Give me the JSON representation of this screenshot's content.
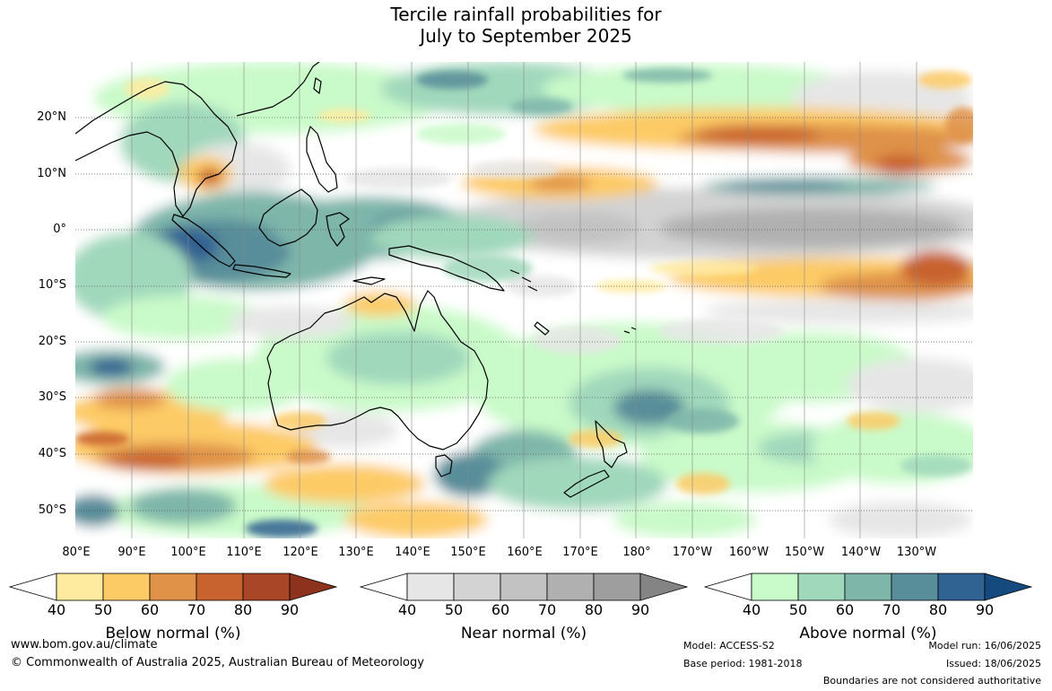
{
  "title_line1": "Tercile rainfall probabilities for",
  "title_line2": "July to September 2025",
  "lat_labels": [
    "20°N",
    "10°N",
    "0°",
    "10°S",
    "20°S",
    "30°S",
    "40°S",
    "50°S"
  ],
  "lon_labels": [
    "80°E",
    "90°E",
    "100°E",
    "110°E",
    "120°E",
    "130°E",
    "140°E",
    "150°E",
    "160°E",
    "170°E",
    "180°",
    "170°W",
    "160°W",
    "150°W",
    "140°W",
    "130°W"
  ],
  "colorbars": [
    {
      "title": "Below normal (%)",
      "ticks": [
        "40",
        "50",
        "60",
        "70",
        "80",
        "90"
      ],
      "colors": [
        "#ffffff",
        "#ffeba0",
        "#fdcb66",
        "#df9248",
        "#c8622f",
        "#a84627",
        "#8c321d"
      ]
    },
    {
      "title": "Near normal (%)",
      "ticks": [
        "40",
        "50",
        "60",
        "70",
        "80",
        "90"
      ],
      "colors": [
        "#ffffff",
        "#e6e6e6",
        "#d3d3d3",
        "#c2c2c2",
        "#b0b0b0",
        "#9e9e9e",
        "#848484"
      ]
    },
    {
      "title": "Above normal (%)",
      "ticks": [
        "40",
        "50",
        "60",
        "70",
        "80",
        "90"
      ],
      "colors": [
        "#ffffff",
        "#c9fac9",
        "#a0d8bc",
        "#7eb6aa",
        "#588d9a",
        "#306292",
        "#144a7e"
      ]
    }
  ],
  "footer": {
    "url": "www.bom.gov.au/climate",
    "copyright": "© Commonwealth of Australia 2025, Australian Bureau of Meteorology",
    "model": "Model: ACCESS-S2",
    "base_period": "Base period: 1981-2018",
    "model_run": "Model run: 16/06/2025",
    "issued": "Issued: 18/06/2025",
    "boundaries": "Boundaries are not considered authoritative"
  }
}
